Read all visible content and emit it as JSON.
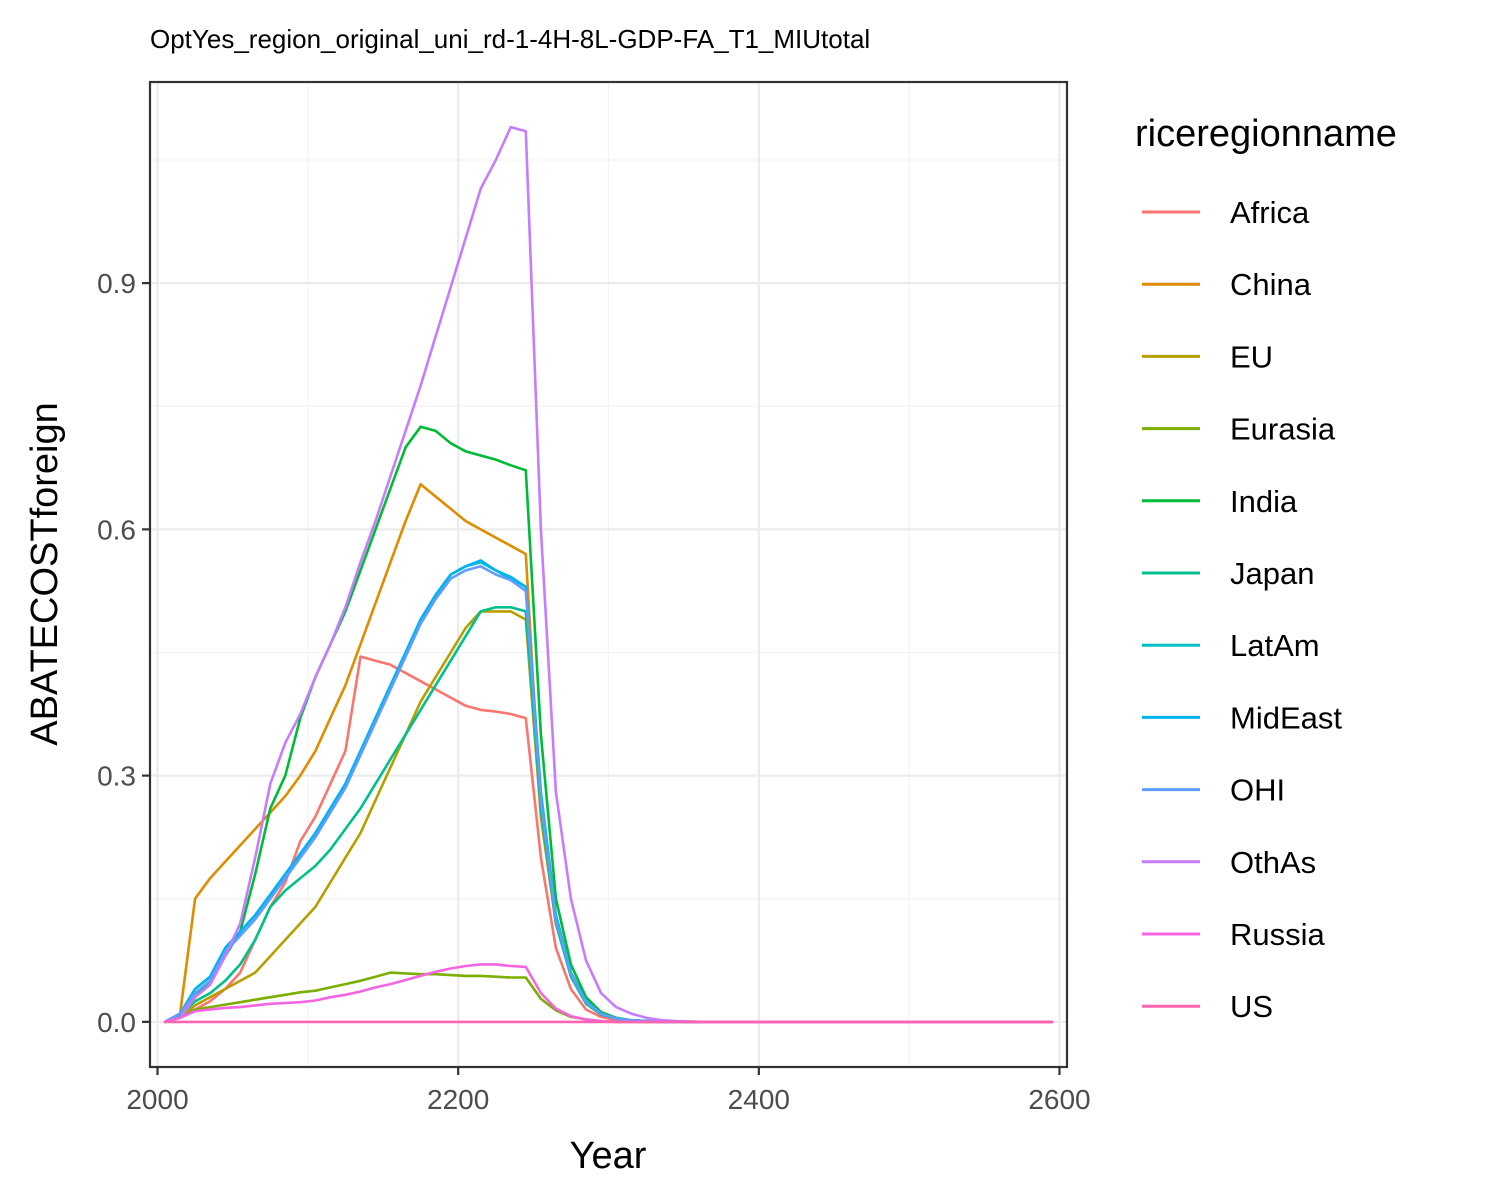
{
  "chart_data": {
    "type": "line",
    "title": "OptYes_region_original_uni_rd-1-4H-8L-GDP-FA_T1_MIUtotal",
    "xlabel": "Year",
    "ylabel": "ABATECOSTforeign",
    "xlim": [
      1995,
      2605
    ],
    "ylim": [
      -0.055,
      1.145
    ],
    "xticks": [
      2000,
      2200,
      2400,
      2600
    ],
    "yticks": [
      0.0,
      0.3,
      0.6,
      0.9
    ],
    "ytick_labels": [
      "0.0",
      "0.3",
      "0.6",
      "0.9"
    ],
    "grid": true,
    "legend": {
      "title": "riceregionname",
      "position": "right"
    },
    "series": [
      {
        "name": "Africa",
        "color": "#F8766D",
        "x": [
          2005,
          2015,
          2025,
          2035,
          2045,
          2055,
          2065,
          2075,
          2085,
          2095,
          2105,
          2115,
          2125,
          2135,
          2145,
          2155,
          2165,
          2175,
          2185,
          2195,
          2205,
          2215,
          2225,
          2235,
          2245,
          2255,
          2265,
          2275,
          2285,
          2295,
          2305,
          2315,
          2325,
          2335,
          2345,
          2365,
          2400,
          2450,
          2500,
          2550,
          2595
        ],
        "y": [
          0,
          0.005,
          0.015,
          0.025,
          0.04,
          0.06,
          0.1,
          0.14,
          0.17,
          0.22,
          0.25,
          0.29,
          0.33,
          0.445,
          0.44,
          0.435,
          0.425,
          0.415,
          0.405,
          0.395,
          0.385,
          0.38,
          0.378,
          0.375,
          0.37,
          0.2,
          0.09,
          0.04,
          0.015,
          0.006,
          0.002,
          0.001,
          0,
          0,
          0,
          0,
          0,
          0,
          0,
          0,
          0
        ]
      },
      {
        "name": "China",
        "color": "#DE8C00",
        "x": [
          2005,
          2015,
          2025,
          2035,
          2045,
          2055,
          2065,
          2075,
          2085,
          2095,
          2105,
          2115,
          2125,
          2135,
          2145,
          2155,
          2165,
          2175,
          2185,
          2195,
          2205,
          2215,
          2225,
          2235,
          2245,
          2255,
          2265,
          2275,
          2285,
          2295,
          2305,
          2315,
          2325,
          2335,
          2345,
          2365,
          2400,
          2450,
          2500,
          2550,
          2595
        ],
        "y": [
          0,
          0.01,
          0.15,
          0.175,
          0.195,
          0.215,
          0.235,
          0.255,
          0.275,
          0.3,
          0.33,
          0.37,
          0.41,
          0.46,
          0.51,
          0.56,
          0.61,
          0.655,
          0.64,
          0.625,
          0.61,
          0.6,
          0.59,
          0.58,
          0.57,
          0.25,
          0.12,
          0.06,
          0.025,
          0.01,
          0.004,
          0.002,
          0.001,
          0,
          0,
          0,
          0,
          0,
          0,
          0,
          0
        ]
      },
      {
        "name": "EU",
        "color": "#B79F00",
        "x": [
          2005,
          2015,
          2025,
          2035,
          2045,
          2055,
          2065,
          2075,
          2085,
          2095,
          2105,
          2115,
          2125,
          2135,
          2145,
          2155,
          2165,
          2175,
          2185,
          2195,
          2205,
          2215,
          2225,
          2235,
          2245,
          2255,
          2265,
          2275,
          2285,
          2295,
          2305,
          2315,
          2325,
          2335,
          2345,
          2365,
          2400,
          2450,
          2500,
          2550,
          2595
        ],
        "y": [
          0,
          0.005,
          0.02,
          0.03,
          0.04,
          0.05,
          0.06,
          0.08,
          0.1,
          0.12,
          0.14,
          0.17,
          0.2,
          0.23,
          0.27,
          0.31,
          0.35,
          0.39,
          0.42,
          0.45,
          0.48,
          0.5,
          0.5,
          0.5,
          0.49,
          0.25,
          0.12,
          0.06,
          0.025,
          0.01,
          0.004,
          0.002,
          0.001,
          0,
          0,
          0,
          0,
          0,
          0,
          0,
          0
        ]
      },
      {
        "name": "Eurasia",
        "color": "#7CAE00",
        "x": [
          2005,
          2015,
          2025,
          2035,
          2045,
          2055,
          2065,
          2075,
          2085,
          2095,
          2105,
          2115,
          2125,
          2135,
          2145,
          2155,
          2165,
          2175,
          2185,
          2195,
          2205,
          2215,
          2225,
          2235,
          2245,
          2255,
          2265,
          2275,
          2285,
          2295,
          2305,
          2315,
          2325,
          2335,
          2345,
          2365,
          2400,
          2450,
          2500,
          2550,
          2595
        ],
        "y": [
          0,
          0.005,
          0.015,
          0.018,
          0.021,
          0.024,
          0.027,
          0.03,
          0.033,
          0.036,
          0.038,
          0.042,
          0.046,
          0.05,
          0.055,
          0.06,
          0.059,
          0.058,
          0.058,
          0.057,
          0.056,
          0.056,
          0.055,
          0.054,
          0.054,
          0.028,
          0.014,
          0.006,
          0.003,
          0.001,
          0,
          0,
          0,
          0,
          0,
          0,
          0,
          0,
          0,
          0,
          0
        ]
      },
      {
        "name": "India",
        "color": "#00BA38",
        "x": [
          2005,
          2015,
          2025,
          2035,
          2045,
          2055,
          2065,
          2075,
          2085,
          2095,
          2105,
          2115,
          2125,
          2135,
          2145,
          2155,
          2165,
          2175,
          2185,
          2195,
          2205,
          2215,
          2225,
          2235,
          2245,
          2255,
          2265,
          2275,
          2285,
          2295,
          2305,
          2315,
          2325,
          2335,
          2345,
          2365,
          2400,
          2450,
          2500,
          2550,
          2595
        ],
        "y": [
          0,
          0.005,
          0.03,
          0.05,
          0.08,
          0.11,
          0.18,
          0.26,
          0.3,
          0.37,
          0.42,
          0.46,
          0.5,
          0.55,
          0.6,
          0.65,
          0.7,
          0.725,
          0.72,
          0.705,
          0.695,
          0.69,
          0.685,
          0.678,
          0.672,
          0.35,
          0.15,
          0.07,
          0.03,
          0.012,
          0.005,
          0.002,
          0.001,
          0,
          0,
          0,
          0,
          0,
          0,
          0,
          0
        ]
      },
      {
        "name": "Japan",
        "color": "#00C08B",
        "x": [
          2005,
          2015,
          2025,
          2035,
          2045,
          2055,
          2065,
          2075,
          2085,
          2095,
          2105,
          2115,
          2125,
          2135,
          2145,
          2155,
          2165,
          2175,
          2185,
          2195,
          2205,
          2215,
          2225,
          2235,
          2245,
          2255,
          2265,
          2275,
          2285,
          2295,
          2305,
          2315,
          2325,
          2335,
          2345,
          2365,
          2400,
          2450,
          2500,
          2550,
          2595
        ],
        "y": [
          0,
          0.008,
          0.025,
          0.035,
          0.05,
          0.07,
          0.1,
          0.14,
          0.16,
          0.175,
          0.19,
          0.21,
          0.235,
          0.26,
          0.29,
          0.32,
          0.35,
          0.38,
          0.41,
          0.44,
          0.47,
          0.5,
          0.505,
          0.505,
          0.5,
          0.26,
          0.12,
          0.055,
          0.022,
          0.009,
          0.004,
          0.002,
          0.001,
          0,
          0,
          0,
          0,
          0,
          0,
          0,
          0
        ]
      },
      {
        "name": "LatAm",
        "color": "#00BFC4",
        "x": [
          2005,
          2015,
          2025,
          2035,
          2045,
          2055,
          2065,
          2075,
          2085,
          2095,
          2105,
          2115,
          2125,
          2135,
          2145,
          2155,
          2165,
          2175,
          2185,
          2195,
          2205,
          2215,
          2225,
          2235,
          2245,
          2255,
          2265,
          2275,
          2285,
          2295,
          2305,
          2315,
          2325,
          2335,
          2345,
          2365,
          2400,
          2450,
          2500,
          2550,
          2595
        ],
        "y": [
          0,
          0.01,
          0.04,
          0.055,
          0.09,
          0.11,
          0.13,
          0.155,
          0.18,
          0.205,
          0.23,
          0.26,
          0.29,
          0.33,
          0.37,
          0.41,
          0.45,
          0.49,
          0.52,
          0.545,
          0.555,
          0.56,
          0.55,
          0.54,
          0.53,
          0.28,
          0.13,
          0.06,
          0.025,
          0.01,
          0.004,
          0.002,
          0.001,
          0,
          0,
          0,
          0,
          0,
          0,
          0,
          0
        ]
      },
      {
        "name": "MidEast",
        "color": "#00B4EF",
        "x": [
          2005,
          2015,
          2025,
          2035,
          2045,
          2055,
          2065,
          2075,
          2085,
          2095,
          2105,
          2115,
          2125,
          2135,
          2145,
          2155,
          2165,
          2175,
          2185,
          2195,
          2205,
          2215,
          2225,
          2235,
          2245,
          2255,
          2265,
          2275,
          2285,
          2295,
          2305,
          2315,
          2325,
          2335,
          2345,
          2365,
          2400,
          2450,
          2500,
          2550,
          2595
        ],
        "y": [
          0,
          0.01,
          0.04,
          0.055,
          0.09,
          0.11,
          0.13,
          0.155,
          0.18,
          0.205,
          0.23,
          0.26,
          0.29,
          0.33,
          0.37,
          0.41,
          0.45,
          0.49,
          0.52,
          0.545,
          0.555,
          0.562,
          0.55,
          0.542,
          0.53,
          0.27,
          0.13,
          0.06,
          0.025,
          0.01,
          0.004,
          0.002,
          0.001,
          0,
          0,
          0,
          0,
          0,
          0,
          0,
          0
        ]
      },
      {
        "name": "OHI",
        "color": "#619CFF",
        "x": [
          2005,
          2015,
          2025,
          2035,
          2045,
          2055,
          2065,
          2075,
          2085,
          2095,
          2105,
          2115,
          2125,
          2135,
          2145,
          2155,
          2165,
          2175,
          2185,
          2195,
          2205,
          2215,
          2225,
          2235,
          2245,
          2255,
          2265,
          2275,
          2285,
          2295,
          2305,
          2315,
          2325,
          2335,
          2345,
          2365,
          2400,
          2450,
          2500,
          2550,
          2595
        ],
        "y": [
          0,
          0.01,
          0.035,
          0.05,
          0.085,
          0.105,
          0.125,
          0.15,
          0.175,
          0.2,
          0.225,
          0.255,
          0.285,
          0.325,
          0.365,
          0.405,
          0.445,
          0.485,
          0.515,
          0.54,
          0.55,
          0.555,
          0.545,
          0.538,
          0.525,
          0.27,
          0.125,
          0.058,
          0.024,
          0.01,
          0.004,
          0.002,
          0.001,
          0,
          0,
          0,
          0,
          0,
          0,
          0,
          0
        ]
      },
      {
        "name": "OthAs",
        "color": "#C77CFF",
        "x": [
          2005,
          2015,
          2025,
          2035,
          2045,
          2055,
          2065,
          2075,
          2085,
          2095,
          2105,
          2115,
          2125,
          2135,
          2145,
          2155,
          2165,
          2175,
          2185,
          2195,
          2205,
          2215,
          2225,
          2235,
          2245,
          2255,
          2265,
          2275,
          2285,
          2295,
          2305,
          2315,
          2325,
          2335,
          2345,
          2365,
          2400,
          2450,
          2500,
          2550,
          2595
        ],
        "y": [
          0,
          0.005,
          0.03,
          0.045,
          0.08,
          0.12,
          0.2,
          0.29,
          0.34,
          0.375,
          0.42,
          0.46,
          0.505,
          0.56,
          0.61,
          0.665,
          0.72,
          0.775,
          0.835,
          0.895,
          0.955,
          1.015,
          1.05,
          1.09,
          1.085,
          0.6,
          0.28,
          0.15,
          0.075,
          0.035,
          0.018,
          0.01,
          0.005,
          0.002,
          0.001,
          0,
          0,
          0,
          0,
          0,
          0
        ]
      },
      {
        "name": "Russia",
        "color": "#F564E3",
        "x": [
          2005,
          2015,
          2025,
          2035,
          2045,
          2055,
          2065,
          2075,
          2085,
          2095,
          2105,
          2115,
          2125,
          2135,
          2145,
          2155,
          2165,
          2175,
          2185,
          2195,
          2205,
          2215,
          2225,
          2235,
          2245,
          2255,
          2265,
          2275,
          2285,
          2295,
          2305,
          2315,
          2325,
          2335,
          2345,
          2365,
          2400,
          2450,
          2500,
          2550,
          2595
        ],
        "y": [
          0,
          0.005,
          0.013,
          0.015,
          0.017,
          0.018,
          0.02,
          0.022,
          0.023,
          0.024,
          0.026,
          0.03,
          0.033,
          0.037,
          0.042,
          0.046,
          0.051,
          0.056,
          0.061,
          0.065,
          0.068,
          0.07,
          0.07,
          0.068,
          0.067,
          0.035,
          0.016,
          0.007,
          0.003,
          0.001,
          0,
          0,
          0,
          0,
          0,
          0,
          0,
          0,
          0,
          0,
          0
        ]
      },
      {
        "name": "US",
        "color": "#FF64B0",
        "x": [
          2005,
          2595
        ],
        "y": [
          0,
          0
        ]
      }
    ]
  }
}
